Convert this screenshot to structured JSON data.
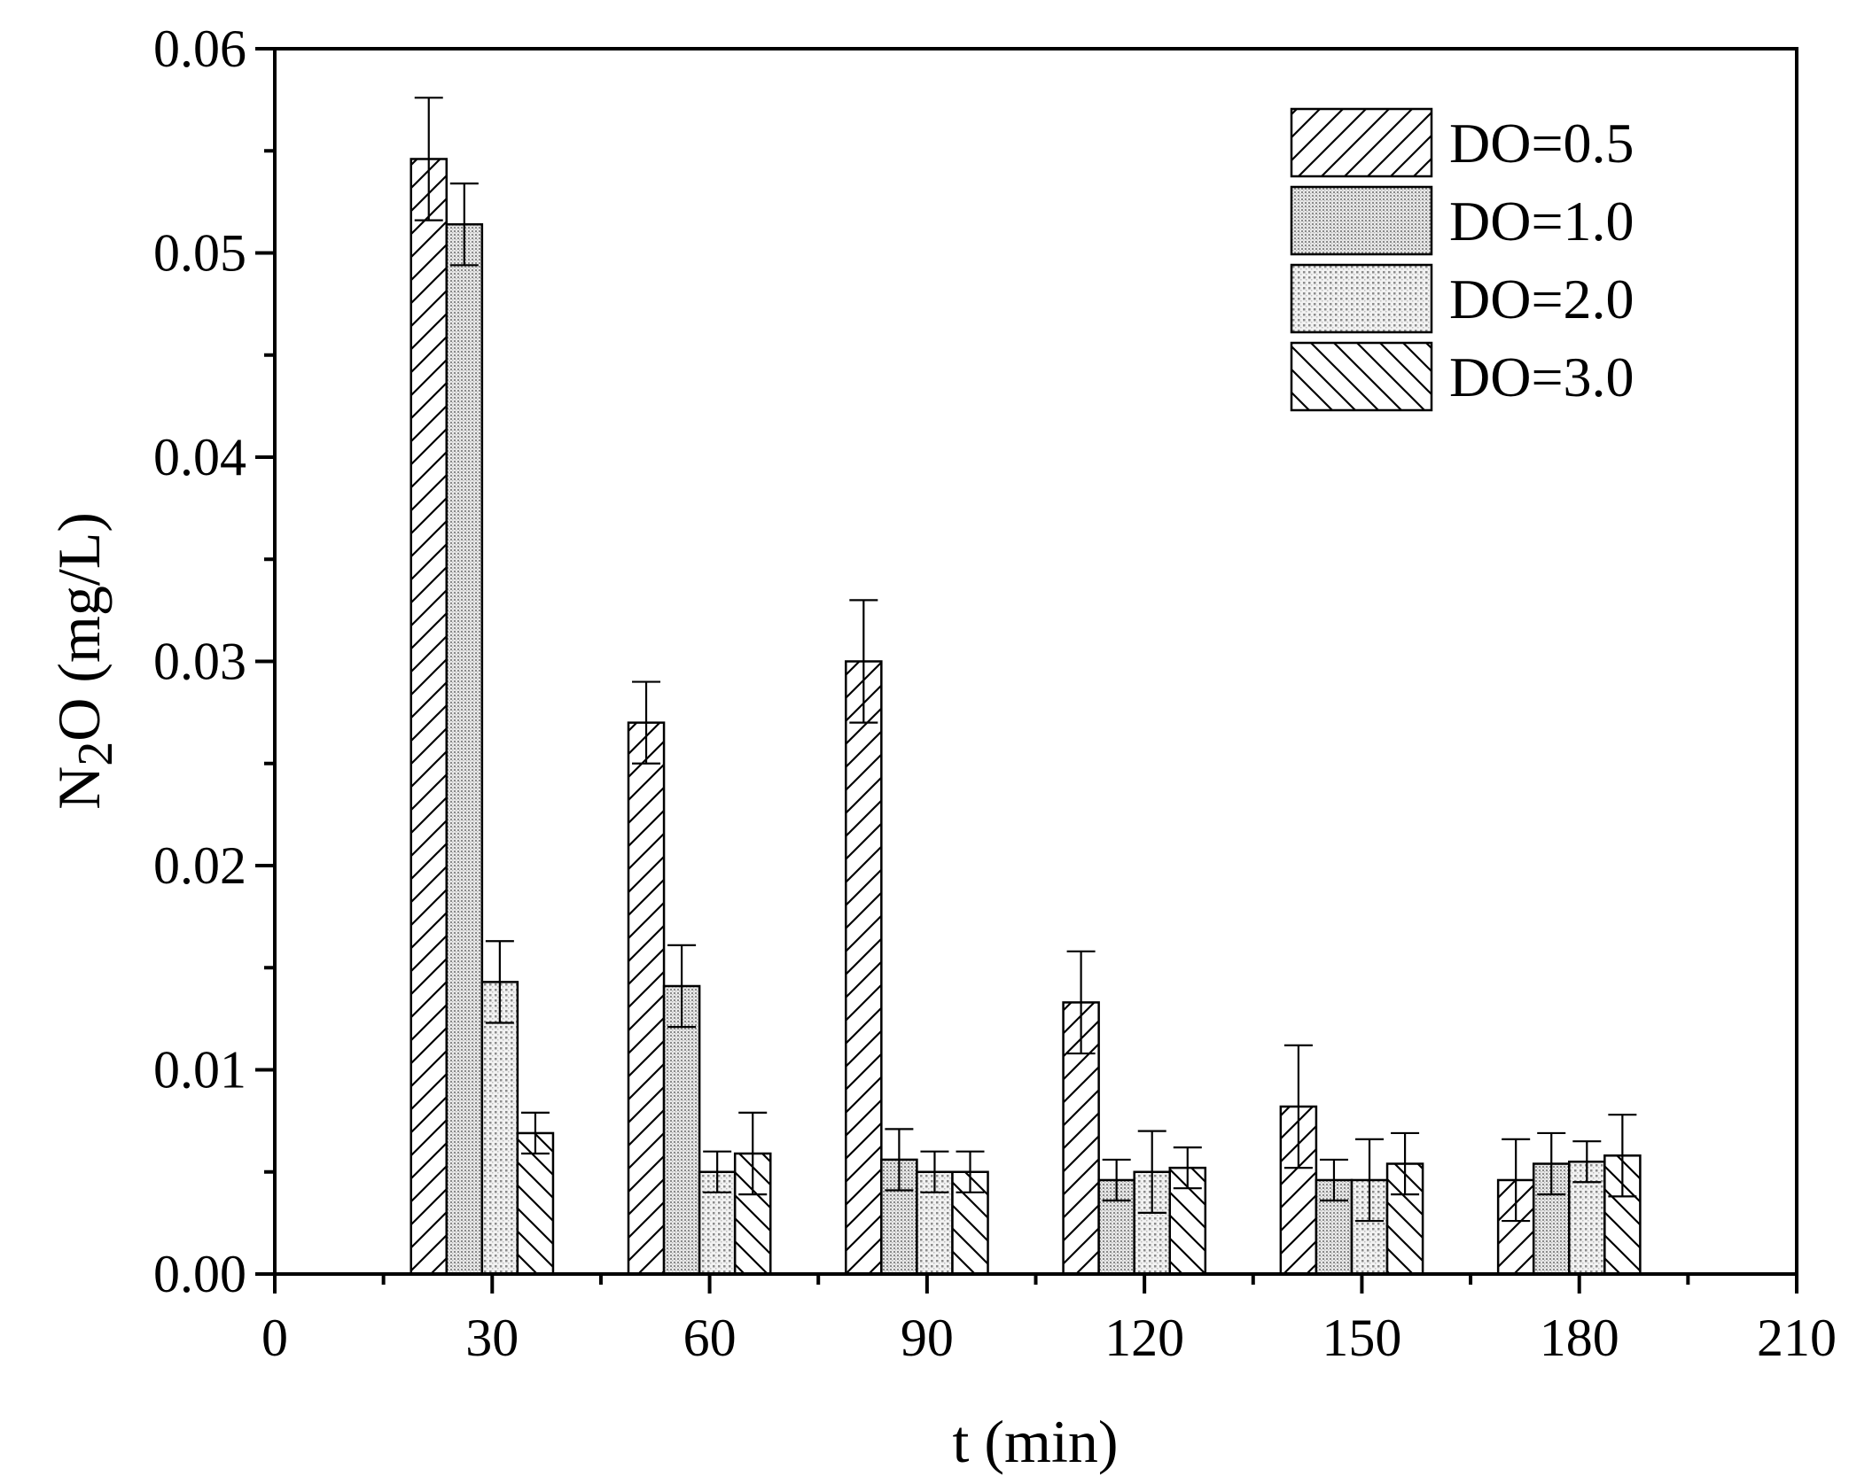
{
  "chart_data": {
    "type": "bar",
    "xlabel": "t (min)",
    "ylabel_parts": [
      "N",
      "2",
      "O (mg/L)"
    ],
    "xlim": [
      0,
      210
    ],
    "ylim": [
      0,
      0.06
    ],
    "x_ticks": [
      "0",
      "30",
      "60",
      "90",
      "120",
      "150",
      "180",
      "210"
    ],
    "y_ticks": [
      "0.00",
      "0.01",
      "0.02",
      "0.03",
      "0.04",
      "0.05",
      "0.06"
    ],
    "categories": [
      30,
      60,
      90,
      120,
      150,
      180
    ],
    "legend_position": "top-right",
    "series": [
      {
        "name": "DO=0.5",
        "pattern": "hatch-forward",
        "values": [
          0.0546,
          0.027,
          0.03,
          0.0133,
          0.0082,
          0.0046
        ],
        "errors": [
          0.003,
          0.002,
          0.003,
          0.0025,
          0.003,
          0.002
        ]
      },
      {
        "name": "DO=1.0",
        "pattern": "dots-dense",
        "values": [
          0.0514,
          0.0141,
          0.0056,
          0.0046,
          0.0046,
          0.0054
        ],
        "errors": [
          0.002,
          0.002,
          0.0015,
          0.001,
          0.001,
          0.0015
        ]
      },
      {
        "name": "DO=2.0",
        "pattern": "dots-sparse",
        "values": [
          0.0143,
          0.005,
          0.005,
          0.005,
          0.0046,
          0.0055
        ],
        "errors": [
          0.002,
          0.001,
          0.001,
          0.002,
          0.002,
          0.001
        ]
      },
      {
        "name": "DO=3.0",
        "pattern": "hatch-backward",
        "values": [
          0.0069,
          0.0059,
          0.005,
          0.0052,
          0.0054,
          0.0058
        ],
        "errors": [
          0.001,
          0.002,
          0.001,
          0.001,
          0.0015,
          0.002
        ]
      }
    ]
  }
}
